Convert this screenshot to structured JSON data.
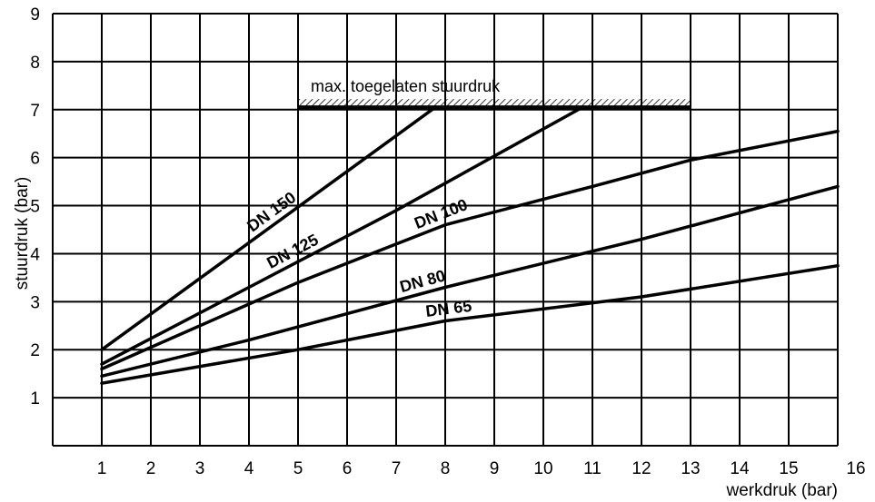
{
  "chart_data": {
    "type": "line",
    "title": "",
    "xlabel": "werkdruk (bar)",
    "ylabel": "stuurdruk (bar)",
    "xlim": [
      0,
      16
    ],
    "ylim": [
      0,
      9
    ],
    "x_ticks": [
      1,
      2,
      3,
      4,
      5,
      6,
      7,
      8,
      9,
      10,
      11,
      12,
      13,
      14,
      15,
      16
    ],
    "y_ticks": [
      1,
      2,
      3,
      4,
      5,
      6,
      7,
      8,
      9
    ],
    "grid": true,
    "legend": "none (series labelled on the lines)",
    "limit_line": {
      "label": "max. toegelaten stuurdruk",
      "y": 7.05,
      "x_range": [
        5,
        13
      ]
    },
    "series": [
      {
        "name": "DN 150",
        "label_x": 4.6,
        "points": [
          [
            1,
            2.0
          ],
          [
            7.8,
            7.05
          ]
        ]
      },
      {
        "name": "DN 125",
        "label_x": 5.0,
        "points": [
          [
            1,
            1.7
          ],
          [
            4,
            3.3
          ],
          [
            7,
            4.9
          ],
          [
            10.8,
            7.05
          ]
        ]
      },
      {
        "name": "DN 100",
        "label_x": 8.0,
        "points": [
          [
            1,
            1.6
          ],
          [
            5,
            3.4
          ],
          [
            8,
            4.6
          ],
          [
            11,
            5.4
          ],
          [
            13,
            5.95
          ],
          [
            16,
            6.55
          ]
        ]
      },
      {
        "name": "DN 80",
        "label_x": 7.6,
        "points": [
          [
            1,
            1.45
          ],
          [
            4,
            2.2
          ],
          [
            8,
            3.3
          ],
          [
            12,
            4.3
          ],
          [
            16,
            5.4
          ]
        ]
      },
      {
        "name": "DN 65",
        "label_x": 8.1,
        "points": [
          [
            1,
            1.3
          ],
          [
            5,
            2.0
          ],
          [
            8,
            2.6
          ],
          [
            12,
            3.1
          ],
          [
            16,
            3.75
          ]
        ]
      }
    ]
  }
}
